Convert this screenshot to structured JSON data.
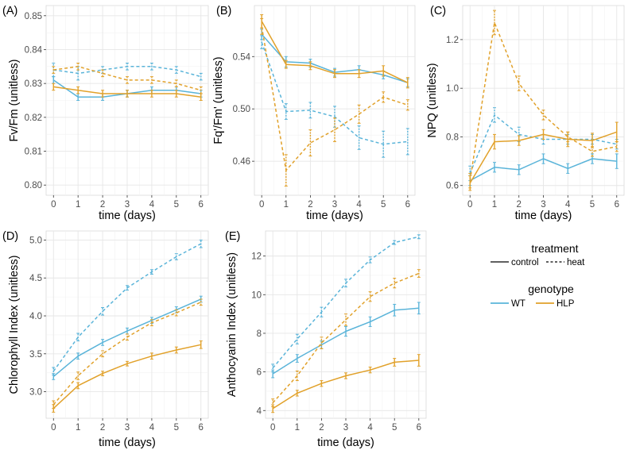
{
  "colors": {
    "WT": "#5ab4d9",
    "HLP": "#e1a12a"
  },
  "legend": {
    "treatment_title": "treatment",
    "treatment_items": [
      {
        "label": "control",
        "linetype": "solid"
      },
      {
        "label": "heat",
        "linetype": "dashed"
      }
    ],
    "genotype_title": "genotype",
    "genotype_items": [
      {
        "label": "WT",
        "color": "#5ab4d9"
      },
      {
        "label": "HLP",
        "color": "#e1a12a"
      }
    ]
  },
  "chart_data": [
    {
      "tag": "(A)",
      "type": "line",
      "xlabel": "time (days)",
      "ylabel": "Fv/Fm (unitless)",
      "x": [
        0,
        1,
        2,
        3,
        4,
        5,
        6
      ],
      "xlim": [
        -0.3,
        6.3
      ],
      "ylim": [
        0.797,
        0.853
      ],
      "yticks": [
        0.8,
        0.81,
        0.82,
        0.83,
        0.84,
        0.85
      ],
      "ytick_labels": [
        "0.80",
        "0.81",
        "0.82",
        "0.83",
        "0.84",
        "0.85"
      ],
      "series": [
        {
          "genotype": "WT",
          "treatment": "control",
          "values": [
            0.831,
            0.826,
            0.826,
            0.827,
            0.828,
            0.828,
            0.827
          ],
          "err": [
            0.001,
            0.001,
            0.001,
            0.001,
            0.001,
            0.001,
            0.001
          ]
        },
        {
          "genotype": "WT",
          "treatment": "heat",
          "values": [
            0.834,
            0.833,
            0.834,
            0.835,
            0.835,
            0.834,
            0.832
          ],
          "err": [
            0.002,
            0.002,
            0.001,
            0.001,
            0.001,
            0.001,
            0.001
          ]
        },
        {
          "genotype": "HLP",
          "treatment": "control",
          "values": [
            0.829,
            0.828,
            0.827,
            0.827,
            0.827,
            0.827,
            0.826
          ],
          "err": [
            0.001,
            0.001,
            0.001,
            0.001,
            0.001,
            0.001,
            0.001
          ]
        },
        {
          "genotype": "HLP",
          "treatment": "heat",
          "values": [
            0.834,
            0.835,
            0.833,
            0.831,
            0.831,
            0.83,
            0.828
          ],
          "err": [
            0.001,
            0.001,
            0.001,
            0.001,
            0.001,
            0.001,
            0.001
          ]
        }
      ]
    },
    {
      "tag": "(B)",
      "type": "line",
      "xlabel": "time (days)",
      "ylabel": "Fq'/Fm' (unitless)",
      "x": [
        0,
        1,
        2,
        3,
        4,
        5,
        6
      ],
      "xlim": [
        -0.3,
        6.3
      ],
      "ylim": [
        0.434,
        0.579
      ],
      "yticks": [
        0.46,
        0.5,
        0.54
      ],
      "ytick_labels": [
        "0.46",
        "0.50",
        "0.54"
      ],
      "series": [
        {
          "genotype": "WT",
          "treatment": "control",
          "values": [
            0.557,
            0.536,
            0.535,
            0.528,
            0.53,
            0.526,
            0.52
          ],
          "err": [
            0.004,
            0.004,
            0.003,
            0.003,
            0.003,
            0.003,
            0.003
          ]
        },
        {
          "genotype": "WT",
          "treatment": "heat",
          "values": [
            0.551,
            0.498,
            0.499,
            0.494,
            0.478,
            0.473,
            0.475
          ],
          "err": [
            0.005,
            0.006,
            0.006,
            0.008,
            0.009,
            0.01,
            0.01
          ]
        },
        {
          "genotype": "HLP",
          "treatment": "control",
          "values": [
            0.567,
            0.534,
            0.533,
            0.527,
            0.527,
            0.529,
            0.52
          ],
          "err": [
            0.005,
            0.003,
            0.003,
            0.003,
            0.003,
            0.004,
            0.004
          ]
        },
        {
          "genotype": "HLP",
          "treatment": "heat",
          "values": [
            0.563,
            0.453,
            0.474,
            0.484,
            0.496,
            0.509,
            0.503
          ],
          "err": [
            0.006,
            0.012,
            0.01,
            0.009,
            0.007,
            0.004,
            0.004
          ]
        }
      ]
    },
    {
      "tag": "(C)",
      "type": "line",
      "xlabel": "time (days)",
      "ylabel": "NPQ (unitless)",
      "x": [
        0,
        1,
        2,
        3,
        4,
        5,
        6
      ],
      "xlim": [
        -0.3,
        6.3
      ],
      "ylim": [
        0.56,
        1.34
      ],
      "yticks": [
        0.6,
        0.8,
        1.0,
        1.2
      ],
      "ytick_labels": [
        "0.6",
        "0.8",
        "1.0",
        "1.2"
      ],
      "series": [
        {
          "genotype": "WT",
          "treatment": "control",
          "values": [
            0.62,
            0.675,
            0.665,
            0.71,
            0.67,
            0.71,
            0.7
          ],
          "err": [
            0.02,
            0.02,
            0.02,
            0.02,
            0.02,
            0.02,
            0.03
          ]
        },
        {
          "genotype": "WT",
          "treatment": "heat",
          "values": [
            0.65,
            0.89,
            0.81,
            0.79,
            0.79,
            0.79,
            0.77
          ],
          "err": [
            0.03,
            0.03,
            0.03,
            0.02,
            0.02,
            0.02,
            0.02
          ]
        },
        {
          "genotype": "HLP",
          "treatment": "control",
          "values": [
            0.61,
            0.78,
            0.785,
            0.81,
            0.79,
            0.785,
            0.82
          ],
          "err": [
            0.03,
            0.03,
            0.02,
            0.02,
            0.03,
            0.03,
            0.04
          ]
        },
        {
          "genotype": "HLP",
          "treatment": "heat",
          "values": [
            0.62,
            1.27,
            1.02,
            0.89,
            0.8,
            0.74,
            0.76
          ],
          "err": [
            0.03,
            0.05,
            0.03,
            0.02,
            0.02,
            0.02,
            0.02
          ]
        }
      ]
    },
    {
      "tag": "(D)",
      "type": "line",
      "xlabel": "time (days)",
      "ylabel": "Chlorophyll Index (unitless)",
      "x": [
        0,
        1,
        2,
        3,
        4,
        5,
        6
      ],
      "xlim": [
        -0.3,
        6.3
      ],
      "ylim": [
        2.65,
        5.12
      ],
      "yticks": [
        3.0,
        3.5,
        4.0,
        4.5,
        5.0
      ],
      "ytick_labels": [
        "3.0",
        "3.5",
        "4.0",
        "4.5",
        "5.0"
      ],
      "series": [
        {
          "genotype": "WT",
          "treatment": "control",
          "values": [
            3.2,
            3.47,
            3.65,
            3.8,
            3.94,
            4.08,
            4.22
          ],
          "err": [
            0.04,
            0.04,
            0.04,
            0.04,
            0.04,
            0.04,
            0.04
          ]
        },
        {
          "genotype": "WT",
          "treatment": "heat",
          "values": [
            3.27,
            3.72,
            4.06,
            4.37,
            4.58,
            4.78,
            4.95
          ],
          "err": [
            0.05,
            0.05,
            0.05,
            0.03,
            0.03,
            0.04,
            0.05
          ]
        },
        {
          "genotype": "HLP",
          "treatment": "control",
          "values": [
            2.78,
            3.08,
            3.24,
            3.37,
            3.47,
            3.55,
            3.62
          ],
          "err": [
            0.05,
            0.04,
            0.03,
            0.03,
            0.04,
            0.04,
            0.05
          ]
        },
        {
          "genotype": "HLP",
          "treatment": "heat",
          "values": [
            2.83,
            3.21,
            3.5,
            3.72,
            3.91,
            4.04,
            4.18
          ],
          "err": [
            0.05,
            0.05,
            0.04,
            0.04,
            0.04,
            0.04,
            0.04
          ]
        }
      ]
    },
    {
      "tag": "(E)",
      "type": "line",
      "xlabel": "time (days)",
      "ylabel": "Anthocyanin Index (unitless)",
      "x": [
        0,
        1,
        2,
        3,
        4,
        5,
        6
      ],
      "xlim": [
        -0.3,
        6.3
      ],
      "ylim": [
        3.6,
        13.3
      ],
      "yticks": [
        4,
        6,
        8,
        10,
        12
      ],
      "ytick_labels": [
        "4",
        "6",
        "8",
        "10",
        "12"
      ],
      "series": [
        {
          "genotype": "WT",
          "treatment": "control",
          "values": [
            5.9,
            6.7,
            7.4,
            8.1,
            8.6,
            9.2,
            9.3
          ],
          "err": [
            0.2,
            0.2,
            0.2,
            0.25,
            0.25,
            0.3,
            0.3
          ]
        },
        {
          "genotype": "WT",
          "treatment": "heat",
          "values": [
            6.2,
            7.7,
            9.1,
            10.6,
            11.8,
            12.7,
            13.0
          ],
          "err": [
            0.2,
            0.25,
            0.25,
            0.2,
            0.15,
            0.1,
            0.1
          ]
        },
        {
          "genotype": "HLP",
          "treatment": "control",
          "values": [
            4.1,
            4.9,
            5.4,
            5.8,
            6.1,
            6.5,
            6.6
          ],
          "err": [
            0.2,
            0.15,
            0.15,
            0.15,
            0.15,
            0.2,
            0.3
          ]
        },
        {
          "genotype": "HLP",
          "treatment": "heat",
          "values": [
            4.4,
            5.8,
            7.5,
            8.7,
            9.9,
            10.6,
            11.1
          ],
          "err": [
            0.2,
            0.25,
            0.3,
            0.3,
            0.25,
            0.25,
            0.2
          ]
        }
      ]
    }
  ]
}
